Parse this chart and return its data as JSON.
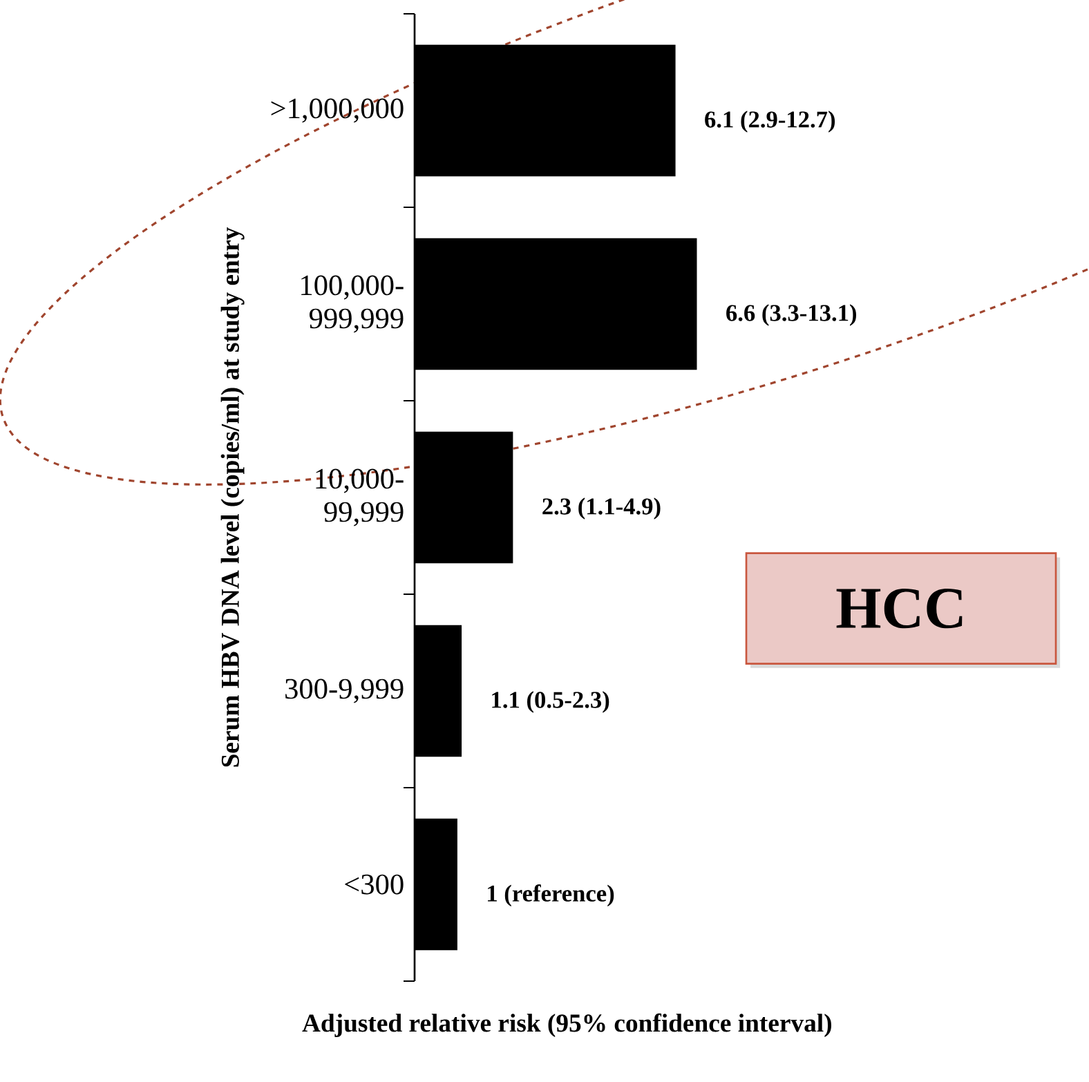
{
  "chart_data": {
    "type": "bar",
    "orientation": "horizontal",
    "categories": [
      ">1,000,000",
      "100,000-999,999",
      "10,000-99,999",
      "300-9,999",
      "<300"
    ],
    "values": [
      6.1,
      6.6,
      2.3,
      1.1,
      1
    ],
    "value_labels": [
      "6.1 (2.9-12.7)",
      "6.6 (3.3-13.1)",
      "2.3 (1.1-4.9)",
      "1.1 (0.5-2.3)",
      "1 (reference)"
    ],
    "color": "#000000",
    "xlabel": "Adjusted relative risk (95% confidence interval)",
    "ylabel": "Serum HBV DNA level (copies/ml) at study entry",
    "annotations": [
      "HCC"
    ]
  }
}
